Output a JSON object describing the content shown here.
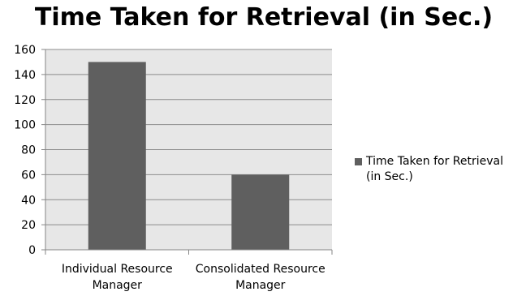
{
  "chart_data": {
    "type": "bar",
    "title": "Time Taken for Retrieval (in Sec.)",
    "categories": [
      [
        "Individual Resource",
        "Manager"
      ],
      [
        "Consolidated Resource",
        "Manager"
      ]
    ],
    "series": [
      {
        "name": "Time Taken for Retrieval (in Sec.)",
        "values": [
          150,
          60
        ],
        "color": "#5f5f5f"
      }
    ],
    "ylim": [
      0,
      160
    ],
    "yticks": [
      0,
      20,
      40,
      60,
      80,
      100,
      120,
      140,
      160
    ],
    "grid": true,
    "legend_position": "right",
    "plot_background": "#e7e7e7",
    "gridline_color": "#8c8c8c"
  }
}
